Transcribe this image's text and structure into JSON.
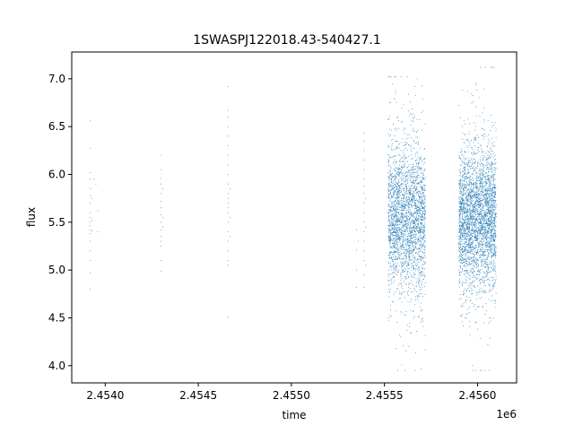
{
  "chart_data": {
    "type": "scatter",
    "title": "1SWASPJ122018.43-540427.1",
    "xlabel": "time",
    "ylabel": "flux",
    "x_offset_label": "1e6",
    "xlim": [
      2.45382,
      2.45621
    ],
    "ylim": [
      3.82,
      7.28
    ],
    "x_ticks": [
      {
        "value": 2.454,
        "label": "2.4540"
      },
      {
        "value": 2.4545,
        "label": "2.4545"
      },
      {
        "value": 2.455,
        "label": "2.4550"
      },
      {
        "value": 2.4555,
        "label": "2.4555"
      },
      {
        "value": 2.456,
        "label": "2.4560"
      }
    ],
    "y_ticks": [
      {
        "value": 4.0,
        "label": "4.0"
      },
      {
        "value": 4.5,
        "label": "4.5"
      },
      {
        "value": 5.0,
        "label": "5.0"
      },
      {
        "value": 5.5,
        "label": "5.5"
      },
      {
        "value": 6.0,
        "label": "6.0"
      },
      {
        "value": 6.5,
        "label": "6.5"
      },
      {
        "value": 7.0,
        "label": "7.0"
      }
    ],
    "grid": false,
    "marker_color": "#1f77b4",
    "series": [
      {
        "points": [
          [
            2.45392,
            6.56
          ],
          [
            2.45392,
            6.27
          ],
          [
            2.45392,
            6.02
          ],
          [
            2.45392,
            5.95
          ],
          [
            2.45392,
            5.85
          ],
          [
            2.45392,
            5.78
          ],
          [
            2.45392,
            5.7
          ],
          [
            2.45392,
            5.6
          ],
          [
            2.45392,
            5.55
          ],
          [
            2.45392,
            5.5
          ],
          [
            2.45392,
            5.46
          ],
          [
            2.45392,
            5.42
          ],
          [
            2.45392,
            5.38
          ],
          [
            2.45392,
            5.3
          ],
          [
            2.45392,
            5.2
          ],
          [
            2.45392,
            5.1
          ],
          [
            2.45392,
            4.97
          ],
          [
            2.45392,
            4.8
          ],
          [
            2.45393,
            5.75
          ],
          [
            2.45393,
            5.52
          ],
          [
            2.45393,
            5.41
          ],
          [
            2.45394,
            5.95
          ],
          [
            2.45395,
            5.9
          ],
          [
            2.45396,
            5.4
          ],
          [
            2.45396,
            5.62
          ],
          [
            2.4543,
            6.2
          ],
          [
            2.4543,
            6.05
          ],
          [
            2.4543,
            5.96
          ],
          [
            2.4543,
            5.9
          ],
          [
            2.4543,
            5.8
          ],
          [
            2.4543,
            5.72
          ],
          [
            2.4543,
            5.65
          ],
          [
            2.4543,
            5.58
          ],
          [
            2.4543,
            5.5
          ],
          [
            2.4543,
            5.42
          ],
          [
            2.4543,
            5.35
          ],
          [
            2.4543,
            5.3
          ],
          [
            2.4543,
            5.25
          ],
          [
            2.4543,
            5.1
          ],
          [
            2.4543,
            4.99
          ],
          [
            2.45431,
            5.85
          ],
          [
            2.45431,
            5.55
          ],
          [
            2.45431,
            5.45
          ],
          [
            2.45466,
            6.92
          ],
          [
            2.45466,
            6.67
          ],
          [
            2.45466,
            6.6
          ],
          [
            2.45466,
            6.5
          ],
          [
            2.45466,
            6.4
          ],
          [
            2.45466,
            6.3
          ],
          [
            2.45466,
            6.2
          ],
          [
            2.45466,
            6.1
          ],
          [
            2.45466,
            6.0
          ],
          [
            2.45466,
            5.9
          ],
          [
            2.45466,
            5.8
          ],
          [
            2.45466,
            5.75
          ],
          [
            2.45466,
            5.7
          ],
          [
            2.45466,
            5.65
          ],
          [
            2.45466,
            5.6
          ],
          [
            2.45466,
            5.5
          ],
          [
            2.45466,
            5.4
          ],
          [
            2.45466,
            5.3
          ],
          [
            2.45466,
            5.2
          ],
          [
            2.45466,
            5.1
          ],
          [
            2.45466,
            5.05
          ],
          [
            2.45466,
            4.51
          ],
          [
            2.45467,
            5.85
          ],
          [
            2.45467,
            5.55
          ],
          [
            2.45467,
            5.35
          ],
          [
            2.45535,
            5.42
          ],
          [
            2.45535,
            5.21
          ],
          [
            2.45535,
            5.0
          ],
          [
            2.45535,
            4.82
          ],
          [
            2.45536,
            5.3
          ],
          [
            2.45539,
            6.43
          ],
          [
            2.45539,
            6.35
          ],
          [
            2.45539,
            6.25
          ],
          [
            2.45539,
            6.15
          ],
          [
            2.45539,
            6.05
          ],
          [
            2.45539,
            5.95
          ],
          [
            2.45539,
            5.88
          ],
          [
            2.45539,
            5.8
          ],
          [
            2.45539,
            5.7
          ],
          [
            2.45539,
            5.6
          ],
          [
            2.45539,
            5.5
          ],
          [
            2.45539,
            5.4
          ],
          [
            2.45539,
            5.3
          ],
          [
            2.45539,
            5.2
          ],
          [
            2.45539,
            5.1
          ],
          [
            2.45539,
            4.95
          ],
          [
            2.45539,
            4.82
          ],
          [
            2.4554,
            5.75
          ],
          [
            2.4554,
            5.45
          ],
          [
            2.4554,
            5.05
          ]
        ]
      }
    ],
    "dense_clusters": [
      {
        "x_range": [
          2.45552,
          2.45572
        ],
        "y_center": 5.55,
        "y_sd": 0.38,
        "y_range": [
          3.95,
          7.02
        ],
        "count": 2600
      },
      {
        "x_range": [
          2.4559,
          2.4561
        ],
        "y_center": 5.55,
        "y_sd": 0.36,
        "y_range": [
          3.95,
          7.12
        ],
        "count": 3200
      }
    ]
  }
}
